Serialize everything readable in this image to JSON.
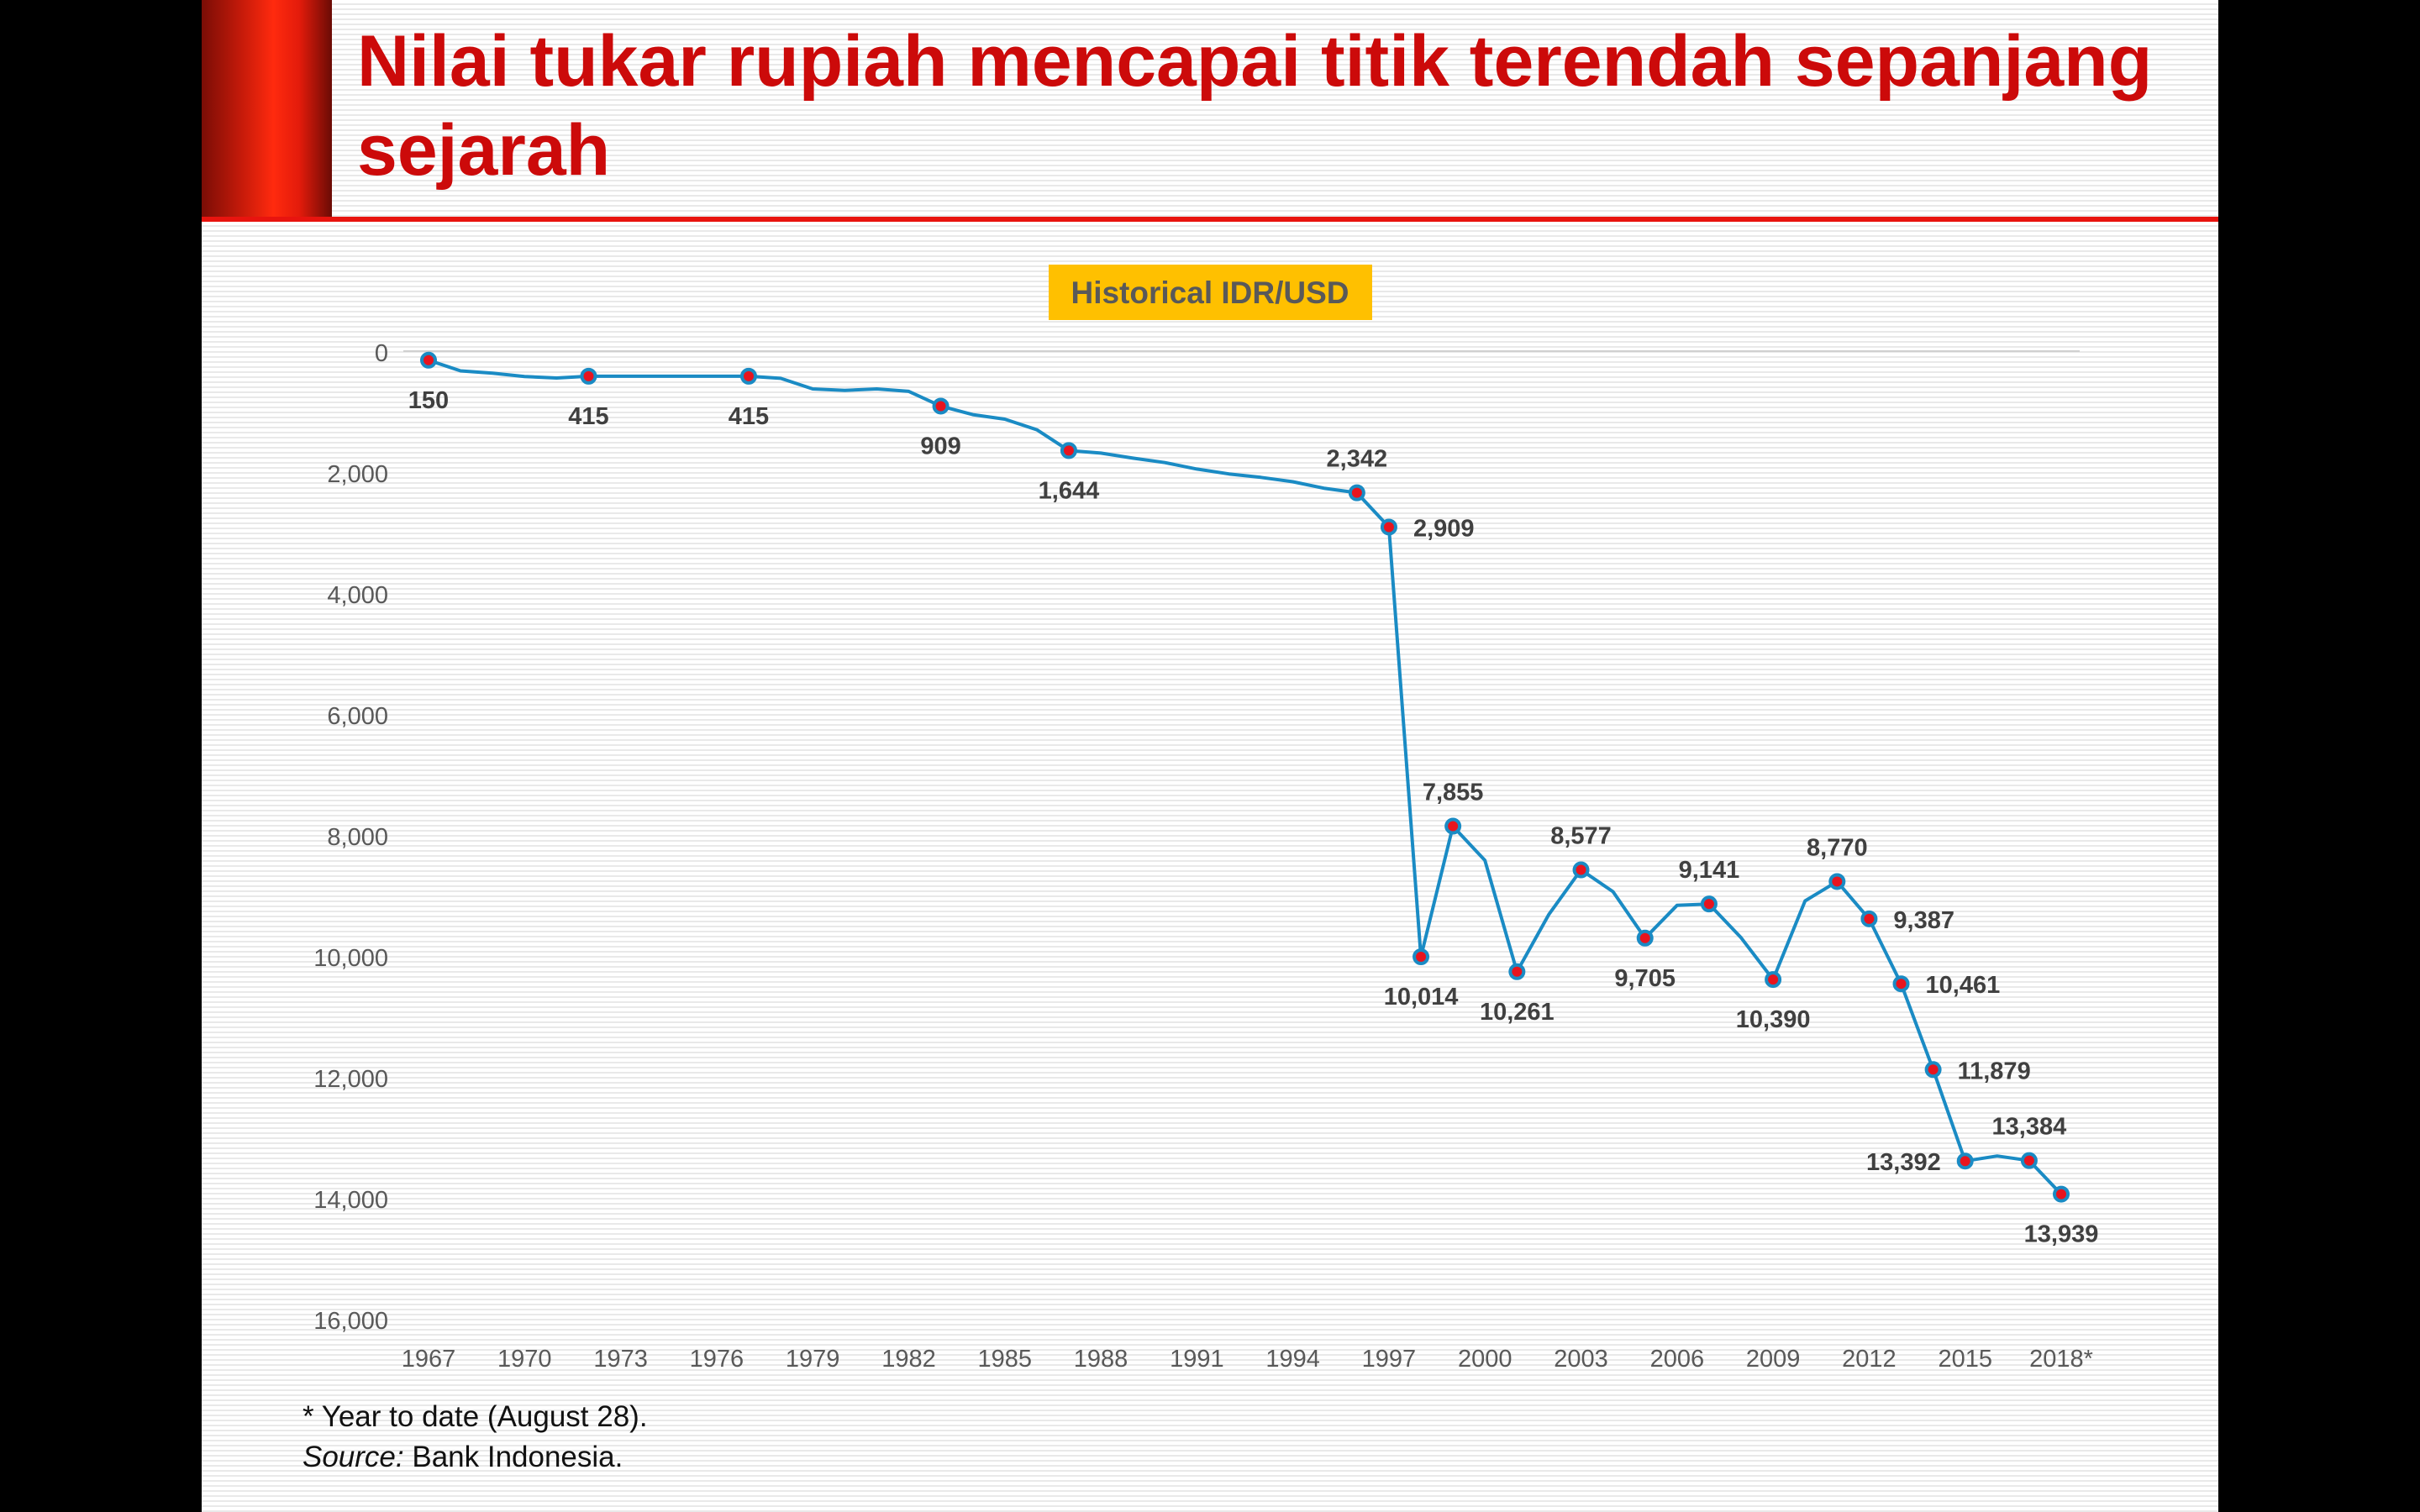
{
  "slide": {
    "title": "Nilai tukar rupiah mencapai titik terendah sepanjang sejarah",
    "footnote": "* Year to date (August 28).",
    "source_label": "Source:",
    "source_text": " Bank Indonesia."
  },
  "colors": {
    "title": "#cc0a0a",
    "accent_bar": "#ff2a0e",
    "rule": "#e8140f",
    "line": "#1a8bc4",
    "marker_fill": "#e8141e",
    "chart_title_bg": "#ffc000",
    "chart_title_text": "#595959",
    "data_label": "#404040",
    "axis_text": "#595959"
  },
  "chart_data": {
    "type": "line",
    "title": "Historical IDR/USD",
    "y_axis": {
      "min": 0,
      "max": 16000,
      "reversed": true,
      "ticks": [
        0,
        2000,
        4000,
        6000,
        8000,
        10000,
        12000,
        14000,
        16000
      ],
      "tick_labels": [
        "0",
        "2,000",
        "4,000",
        "6,000",
        "8,000",
        "10,000",
        "12,000",
        "14,000",
        "16,000"
      ]
    },
    "x_axis": {
      "min": 1967,
      "max": 2018,
      "tick_labels": [
        "1967",
        "1970",
        "1973",
        "1976",
        "1979",
        "1982",
        "1985",
        "1988",
        "1991",
        "1994",
        "1997",
        "2000",
        "2003",
        "2006",
        "2009",
        "2012",
        "2015",
        "2018*"
      ]
    },
    "legend": "none",
    "series": [
      {
        "points": [
          [
            1967,
            150
          ],
          [
            1968,
            326
          ],
          [
            1969,
            365
          ],
          [
            1970,
            420
          ],
          [
            1971,
            445
          ],
          [
            1972,
            415
          ],
          [
            1973,
            415
          ],
          [
            1974,
            415
          ],
          [
            1975,
            415
          ],
          [
            1976,
            415
          ],
          [
            1977,
            415
          ],
          [
            1978,
            450
          ],
          [
            1979,
            625
          ],
          [
            1980,
            650
          ],
          [
            1981,
            625
          ],
          [
            1982,
            665
          ],
          [
            1983,
            909
          ],
          [
            1984,
            1050
          ],
          [
            1985,
            1125
          ],
          [
            1986,
            1300
          ],
          [
            1987,
            1644
          ],
          [
            1988,
            1686
          ],
          [
            1989,
            1770
          ],
          [
            1990,
            1843
          ],
          [
            1991,
            1950
          ],
          [
            1992,
            2030
          ],
          [
            1993,
            2087
          ],
          [
            1994,
            2160
          ],
          [
            1995,
            2270
          ],
          [
            1996,
            2342
          ],
          [
            1997,
            2909
          ],
          [
            1998,
            10014
          ],
          [
            1999,
            7855
          ],
          [
            2000,
            8421
          ],
          [
            2001,
            10261
          ],
          [
            2002,
            9311
          ],
          [
            2003,
            8577
          ],
          [
            2004,
            8938
          ],
          [
            2005,
            9705
          ],
          [
            2006,
            9164
          ],
          [
            2007,
            9141
          ],
          [
            2008,
            9699
          ],
          [
            2009,
            10390
          ],
          [
            2010,
            9090
          ],
          [
            2011,
            8770
          ],
          [
            2012,
            9387
          ],
          [
            2013,
            10461
          ],
          [
            2014,
            11879
          ],
          [
            2015,
            13392
          ],
          [
            2016,
            13308
          ],
          [
            2017,
            13384
          ],
          [
            2018,
            13939
          ]
        ],
        "labels": [
          {
            "x": 1967,
            "y": 150,
            "text": "150",
            "pos": "below"
          },
          {
            "x": 1972,
            "y": 415,
            "text": "415",
            "pos": "below"
          },
          {
            "x": 1977,
            "y": 415,
            "text": "415",
            "pos": "below"
          },
          {
            "x": 1983,
            "y": 909,
            "text": "909",
            "pos": "below"
          },
          {
            "x": 1987,
            "y": 1644,
            "text": "1,644",
            "pos": "below"
          },
          {
            "x": 1996,
            "y": 2342,
            "text": "2,342",
            "pos": "above"
          },
          {
            "x": 1997,
            "y": 2909,
            "text": "2,909",
            "pos": "right"
          },
          {
            "x": 1998,
            "y": 10014,
            "text": "10,014",
            "pos": "below"
          },
          {
            "x": 1999,
            "y": 7855,
            "text": "7,855",
            "pos": "above"
          },
          {
            "x": 2001,
            "y": 10261,
            "text": "10,261",
            "pos": "below"
          },
          {
            "x": 2003,
            "y": 8577,
            "text": "8,577",
            "pos": "above"
          },
          {
            "x": 2005,
            "y": 9705,
            "text": "9,705",
            "pos": "below"
          },
          {
            "x": 2007,
            "y": 9141,
            "text": "9,141",
            "pos": "above"
          },
          {
            "x": 2009,
            "y": 10390,
            "text": "10,390",
            "pos": "below"
          },
          {
            "x": 2011,
            "y": 8770,
            "text": "8,770",
            "pos": "above"
          },
          {
            "x": 2012,
            "y": 9387,
            "text": "9,387",
            "pos": "right"
          },
          {
            "x": 2013,
            "y": 10461,
            "text": "10,461",
            "pos": "right"
          },
          {
            "x": 2014,
            "y": 11879,
            "text": "11,879",
            "pos": "right"
          },
          {
            "x": 2015,
            "y": 13392,
            "text": "13,392",
            "pos": "left"
          },
          {
            "x": 2017,
            "y": 13384,
            "text": "13,384",
            "pos": "above"
          },
          {
            "x": 2018,
            "y": 13939,
            "text": "13,939",
            "pos": "below"
          }
        ]
      }
    ]
  }
}
